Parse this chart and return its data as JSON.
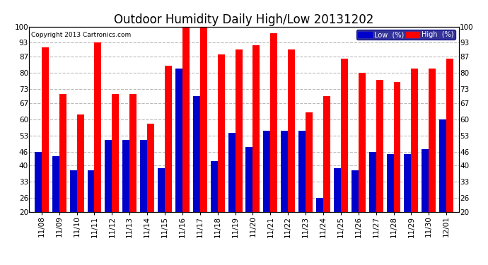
{
  "title": "Outdoor Humidity Daily High/Low 20131202",
  "copyright": "Copyright 2013 Cartronics.com",
  "dates": [
    "11/08",
    "11/09",
    "11/10",
    "11/11",
    "11/12",
    "11/13",
    "11/14",
    "11/15",
    "11/16",
    "11/17",
    "11/18",
    "11/19",
    "11/20",
    "11/21",
    "11/22",
    "11/23",
    "11/24",
    "11/25",
    "11/26",
    "11/27",
    "11/28",
    "11/29",
    "11/30",
    "12/01"
  ],
  "high": [
    91,
    71,
    62,
    93,
    71,
    71,
    58,
    83,
    100,
    100,
    88,
    90,
    92,
    97,
    90,
    63,
    70,
    86,
    80,
    77,
    76,
    82,
    82,
    86
  ],
  "low": [
    46,
    44,
    38,
    38,
    51,
    51,
    51,
    39,
    82,
    70,
    42,
    54,
    48,
    55,
    55,
    55,
    26,
    39,
    38,
    46,
    45,
    45,
    47,
    60
  ],
  "ylim": [
    20,
    100
  ],
  "yticks": [
    20,
    26,
    33,
    40,
    46,
    53,
    60,
    67,
    73,
    80,
    87,
    93,
    100
  ],
  "high_color": "#ff0000",
  "low_color": "#0000cc",
  "bg_color": "#ffffff",
  "grid_color": "#bbbbbb",
  "bar_width": 0.4,
  "title_fontsize": 12,
  "tick_fontsize": 7.5,
  "legend_low_label": "Low  (%)",
  "legend_high_label": "High  (%)"
}
